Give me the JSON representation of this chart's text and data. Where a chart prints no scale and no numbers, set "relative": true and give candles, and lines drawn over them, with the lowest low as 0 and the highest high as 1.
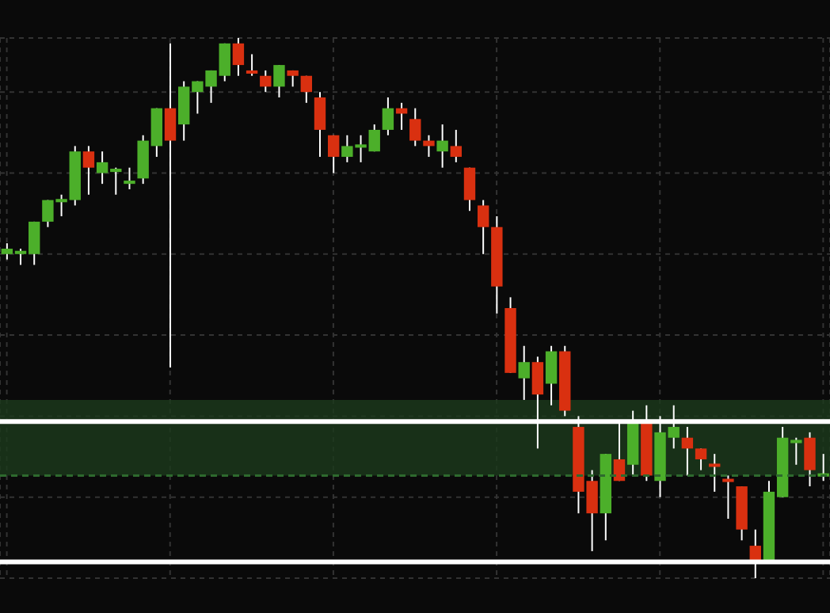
{
  "chart_data": {
    "type": "candlestick",
    "relative": true,
    "grid": true,
    "categories": [
      null,
      null,
      null,
      null,
      null,
      null,
      null,
      null,
      null,
      null,
      null,
      null,
      null,
      null,
      null,
      null,
      null,
      null,
      null,
      null,
      null,
      null,
      null,
      null,
      null,
      null,
      null,
      null,
      null,
      null,
      null,
      null,
      null,
      null,
      null,
      null,
      null,
      null,
      null,
      null,
      null,
      null,
      null,
      null,
      null,
      null,
      null,
      null,
      null,
      null,
      null,
      null,
      null,
      null,
      null,
      null,
      null,
      null,
      null,
      null,
      null
    ],
    "ohlc": [
      [
        0.6,
        0.62,
        0.59,
        0.61
      ],
      [
        0.6,
        0.61,
        0.58,
        0.606
      ],
      [
        0.6,
        0.66,
        0.58,
        0.66
      ],
      [
        0.66,
        0.7,
        0.65,
        0.7
      ],
      [
        0.696,
        0.71,
        0.67,
        0.702
      ],
      [
        0.7,
        0.8,
        0.69,
        0.79
      ],
      [
        0.79,
        0.8,
        0.71,
        0.76
      ],
      [
        0.75,
        0.79,
        0.73,
        0.77
      ],
      [
        0.752,
        0.76,
        0.71,
        0.758
      ],
      [
        0.73,
        0.76,
        0.72,
        0.736
      ],
      [
        0.74,
        0.82,
        0.73,
        0.81
      ],
      [
        0.8,
        0.87,
        0.78,
        0.87
      ],
      [
        0.87,
        0.99,
        0.39,
        0.81
      ],
      [
        0.84,
        0.92,
        0.81,
        0.91
      ],
      [
        0.9,
        0.92,
        0.86,
        0.92
      ],
      [
        0.91,
        0.94,
        0.88,
        0.94
      ],
      [
        0.93,
        0.99,
        0.92,
        0.99
      ],
      [
        0.99,
        1,
        0.93,
        0.95
      ],
      [
        0.94,
        0.97,
        0.93,
        0.934
      ],
      [
        0.93,
        0.94,
        0.9,
        0.91
      ],
      [
        0.91,
        0.95,
        0.89,
        0.95
      ],
      [
        0.94,
        0.94,
        0.91,
        0.93
      ],
      [
        0.93,
        0.93,
        0.88,
        0.9
      ],
      [
        0.89,
        0.9,
        0.78,
        0.83
      ],
      [
        0.82,
        0.82,
        0.75,
        0.78
      ],
      [
        0.78,
        0.82,
        0.77,
        0.8
      ],
      [
        0.797,
        0.82,
        0.77,
        0.803
      ],
      [
        0.79,
        0.84,
        0.79,
        0.83
      ],
      [
        0.83,
        0.89,
        0.82,
        0.87
      ],
      [
        0.87,
        0.88,
        0.83,
        0.86
      ],
      [
        0.85,
        0.87,
        0.8,
        0.81
      ],
      [
        0.81,
        0.82,
        0.78,
        0.8
      ],
      [
        0.79,
        0.84,
        0.76,
        0.81
      ],
      [
        0.8,
        0.83,
        0.77,
        0.78
      ],
      [
        0.76,
        0.76,
        0.68,
        0.7
      ],
      [
        0.69,
        0.7,
        0.6,
        0.65
      ],
      [
        0.65,
        0.67,
        0.49,
        0.54
      ],
      [
        0.5,
        0.52,
        0.38,
        0.38
      ],
      [
        0.37,
        0.43,
        0.33,
        0.4
      ],
      [
        0.4,
        0.41,
        0.24,
        0.34
      ],
      [
        0.36,
        0.43,
        0.32,
        0.42
      ],
      [
        0.42,
        0.43,
        0.3,
        0.31
      ],
      [
        0.28,
        0.3,
        0.12,
        0.16
      ],
      [
        0.18,
        0.2,
        0.05,
        0.12
      ],
      [
        0.12,
        0.23,
        0.07,
        0.23
      ],
      [
        0.22,
        0.29,
        0.18,
        0.18
      ],
      [
        0.21,
        0.31,
        0.19,
        0.29
      ],
      [
        0.29,
        0.32,
        0.18,
        0.19
      ],
      [
        0.18,
        0.3,
        0.15,
        0.27
      ],
      [
        0.26,
        0.32,
        0.24,
        0.28
      ],
      [
        0.26,
        0.28,
        0.19,
        0.24
      ],
      [
        0.24,
        0.24,
        0.2,
        0.22
      ],
      [
        0.212,
        0.23,
        0.16,
        0.206
      ],
      [
        0.184,
        0.19,
        0.11,
        0.178
      ],
      [
        0.17,
        0.17,
        0.07,
        0.09
      ],
      [
        0.06,
        0.09,
        0,
        0.03
      ],
      [
        0.03,
        0.18,
        0.03,
        0.16
      ],
      [
        0.15,
        0.28,
        0.15,
        0.26
      ],
      [
        0.25,
        0.26,
        0.21,
        0.256
      ],
      [
        0.26,
        0.27,
        0.17,
        0.2
      ],
      [
        0.188,
        0.23,
        0.18,
        0.194
      ]
    ],
    "colors": [
      "#4caf2a",
      "#4caf2a",
      "#4caf2a",
      "#4caf2a",
      "#4caf2a",
      "#4caf2a",
      "#d93010",
      "#4caf2a",
      "#4caf2a",
      "#4caf2a",
      "#4caf2a",
      "#4caf2a",
      "#d93010",
      "#4caf2a",
      "#4caf2a",
      "#4caf2a",
      "#4caf2a",
      "#d93010",
      "#d93010",
      "#d93010",
      "#4caf2a",
      "#d93010",
      "#d93010",
      "#d93010",
      "#d93010",
      "#4caf2a",
      "#4caf2a",
      "#4caf2a",
      "#4caf2a",
      "#d93010",
      "#d93010",
      "#d93010",
      "#4caf2a",
      "#d93010",
      "#d93010",
      "#d93010",
      "#d93010",
      "#d93010",
      "#4caf2a",
      "#d93010",
      "#4caf2a",
      "#d93010",
      "#d93010",
      "#d93010",
      "#4caf2a",
      "#d93010",
      "#4caf2a",
      "#d93010",
      "#4caf2a",
      "#4caf2a",
      "#d93010",
      "#d93010",
      "#d93010",
      "#d93010",
      "#d93010",
      "#d93010",
      "#4caf2a",
      "#4caf2a",
      "#4caf2a",
      "#d93010",
      "#4caf2a"
    ],
    "bands": [
      {
        "axis": "y",
        "from": 0.19,
        "to": 0.33,
        "color": "#1c3a1c"
      }
    ],
    "ref_lines": [
      {
        "axis": "y",
        "value": 0.19,
        "color": "#2e6a2e",
        "line_style": "dashed"
      },
      {
        "axis": "y",
        "value": 0.29,
        "color": "#ffffff",
        "line_style": "solid"
      },
      {
        "axis": "y",
        "value": 0.03,
        "color": "#ffffff",
        "line_style": "solid"
      }
    ]
  }
}
